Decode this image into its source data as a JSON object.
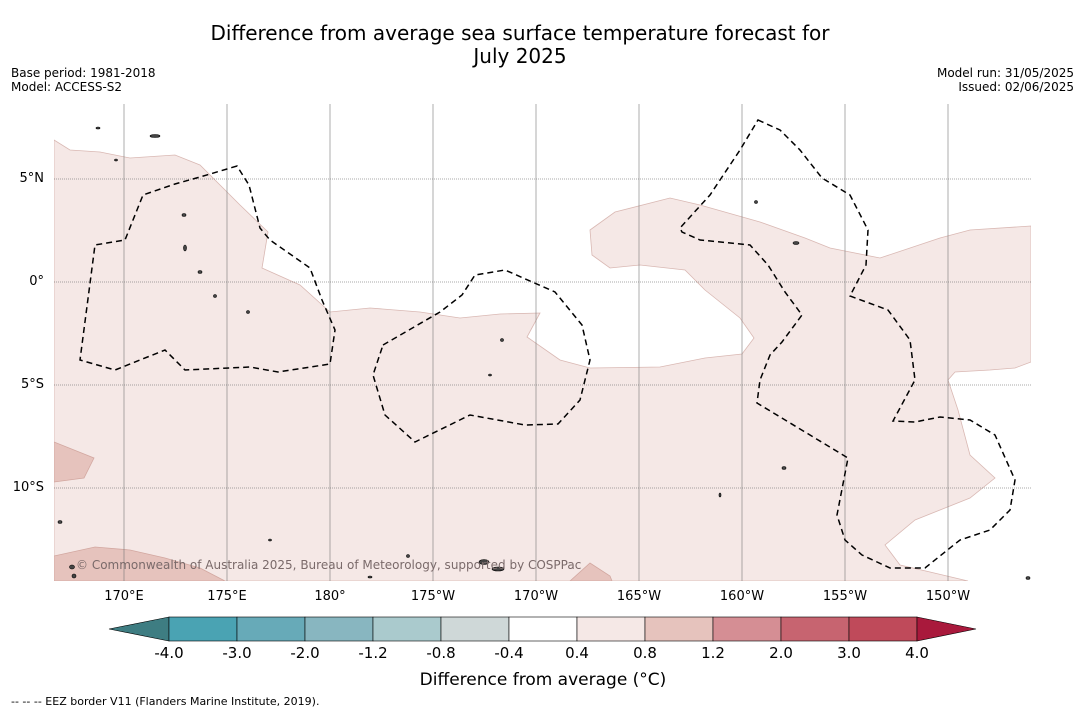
{
  "title_line1": "Difference from average sea surface temperature forecast for",
  "title_line2": "July 2025",
  "base_period": "Base period: 1981-2018",
  "model": "Model: ACCESS-S2",
  "model_run": "Model run: 31/05/2025",
  "issued": "Issued: 02/06/2025",
  "lat_labels": [
    "5°N",
    "0°",
    "5°S",
    "10°S"
  ],
  "lon_labels": [
    "170°E",
    "175°E",
    "180°",
    "175°W",
    "170°W",
    "165°W",
    "160°W",
    "155°W",
    "150°W"
  ],
  "copyright": "© Commonwealth of Australia 2025, Bureau of Meteorology, supported by COSPPac",
  "colorbar": {
    "ticks": [
      "-4.0",
      "-3.0",
      "-2.0",
      "-1.2",
      "-0.8",
      "-0.4",
      "0.4",
      "0.8",
      "1.2",
      "2.0",
      "3.0",
      "4.0"
    ],
    "colors": [
      "#3e7d82",
      "#4aa3b3",
      "#67aab8",
      "#88b6c0",
      "#aacacd",
      "#cfd8d8",
      "#ffffff",
      "#f5e8e6",
      "#e6c3bd",
      "#d58e94",
      "#c76470",
      "#bf4a5a",
      "#a9193c"
    ],
    "label": "Difference from average (°C)"
  },
  "legend_note": "--  --  -- EEZ border V11 (Flanders Marine Institute, 2019)."
}
